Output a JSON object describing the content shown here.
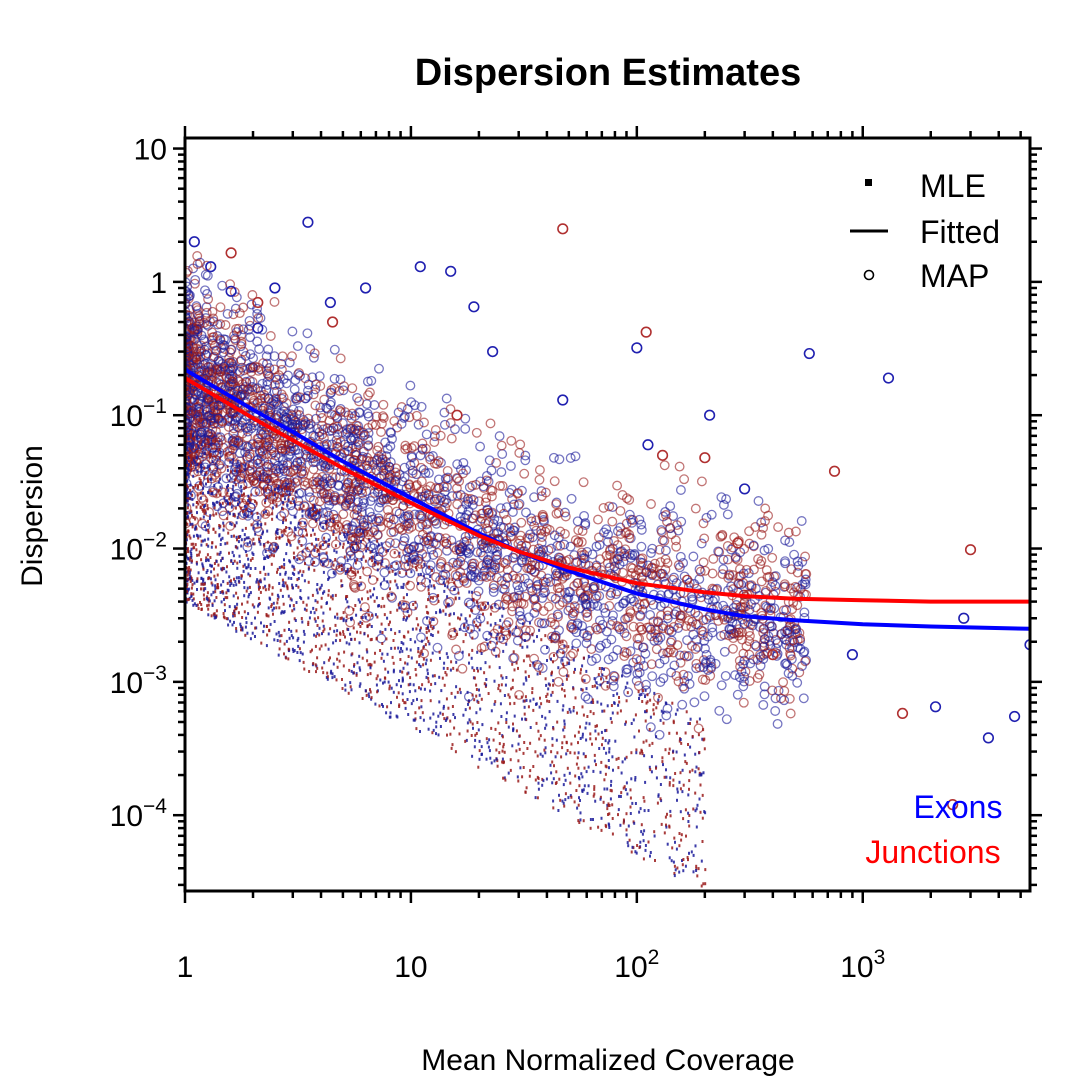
{
  "chart_data": {
    "type": "scatter",
    "title": "Dispersion Estimates",
    "xlabel": "Mean Normalized Coverage",
    "ylabel": "Dispersion",
    "x_scale": "log",
    "y_scale": "log",
    "xlim": [
      1,
      5500
    ],
    "ylim": [
      2.7e-05,
      12
    ],
    "x_ticks": [
      {
        "value": 1,
        "base": "1",
        "exp": ""
      },
      {
        "value": 10,
        "base": "10",
        "exp": ""
      },
      {
        "value": 100,
        "base": "10",
        "exp": "2"
      },
      {
        "value": 1000,
        "base": "10",
        "exp": "3"
      }
    ],
    "y_ticks": [
      {
        "value": 10,
        "base": "10",
        "exp": ""
      },
      {
        "value": 1,
        "base": "1",
        "exp": ""
      },
      {
        "value": 0.1,
        "base": "10",
        "exp": "-1"
      },
      {
        "value": 0.01,
        "base": "10",
        "exp": "-2"
      },
      {
        "value": 0.001,
        "base": "10",
        "exp": "-3"
      },
      {
        "value": 0.0001,
        "base": "10",
        "exp": "-4"
      }
    ],
    "legend": {
      "position": "top-right",
      "items": [
        {
          "label": "MLE",
          "symbol": "square"
        },
        {
          "label": "Fitted",
          "symbol": "line"
        },
        {
          "label": "MAP",
          "symbol": "circle"
        }
      ]
    },
    "groups": [
      {
        "label": "Exons",
        "color": "#0000ff",
        "point_color": "#00008b"
      },
      {
        "label": "Junctions",
        "color": "#ff0000",
        "point_color": "#8b0000"
      }
    ],
    "series": [
      {
        "name": "Exons",
        "kind": "fitted",
        "color": "#0000ff",
        "x": [
          1,
          2,
          3,
          5,
          10,
          20,
          30,
          50,
          100,
          200,
          300,
          500,
          1000,
          2000,
          5500
        ],
        "y": [
          0.22,
          0.11,
          0.075,
          0.045,
          0.024,
          0.013,
          0.0095,
          0.0068,
          0.0046,
          0.0035,
          0.0031,
          0.0029,
          0.0027,
          0.0026,
          0.0025
        ]
      },
      {
        "name": "Junctions",
        "kind": "fitted",
        "color": "#ff0000",
        "x": [
          1,
          2,
          3,
          5,
          10,
          20,
          30,
          50,
          100,
          200,
          300,
          500,
          1000,
          2000,
          5500
        ],
        "y": [
          0.19,
          0.095,
          0.065,
          0.04,
          0.022,
          0.0125,
          0.0095,
          0.0072,
          0.0055,
          0.0047,
          0.0044,
          0.0042,
          0.0041,
          0.004,
          0.004
        ]
      },
      {
        "name": "Exons",
        "kind": "MAP",
        "color": "#2020b0",
        "x": [
          1.1,
          1.3,
          1.6,
          2.1,
          2.5,
          3.5,
          4.4,
          6.3,
          11,
          15,
          19,
          23,
          47,
          100,
          112,
          210,
          300,
          580,
          900,
          1300,
          2100,
          2800,
          3600,
          4700,
          5500
        ],
        "y": [
          2.0,
          1.3,
          0.85,
          0.45,
          0.9,
          2.8,
          0.7,
          0.9,
          1.3,
          1.2,
          0.65,
          0.3,
          0.13,
          0.32,
          0.06,
          0.1,
          0.028,
          0.29,
          0.0016,
          0.19,
          0.00065,
          0.003,
          0.00038,
          0.00055,
          0.0019
        ]
      },
      {
        "name": "Junctions",
        "kind": "MAP",
        "color": "#b03030",
        "x": [
          1.6,
          2.1,
          4.5,
          16,
          47,
          110,
          130,
          200,
          280,
          400,
          750,
          1500,
          2500,
          3000
        ],
        "y": [
          1.65,
          0.7,
          0.5,
          0.1,
          2.5,
          0.42,
          0.05,
          0.048,
          0.011,
          0.0016,
          0.038,
          0.00058,
          0.00012,
          0.0098
        ]
      }
    ]
  }
}
